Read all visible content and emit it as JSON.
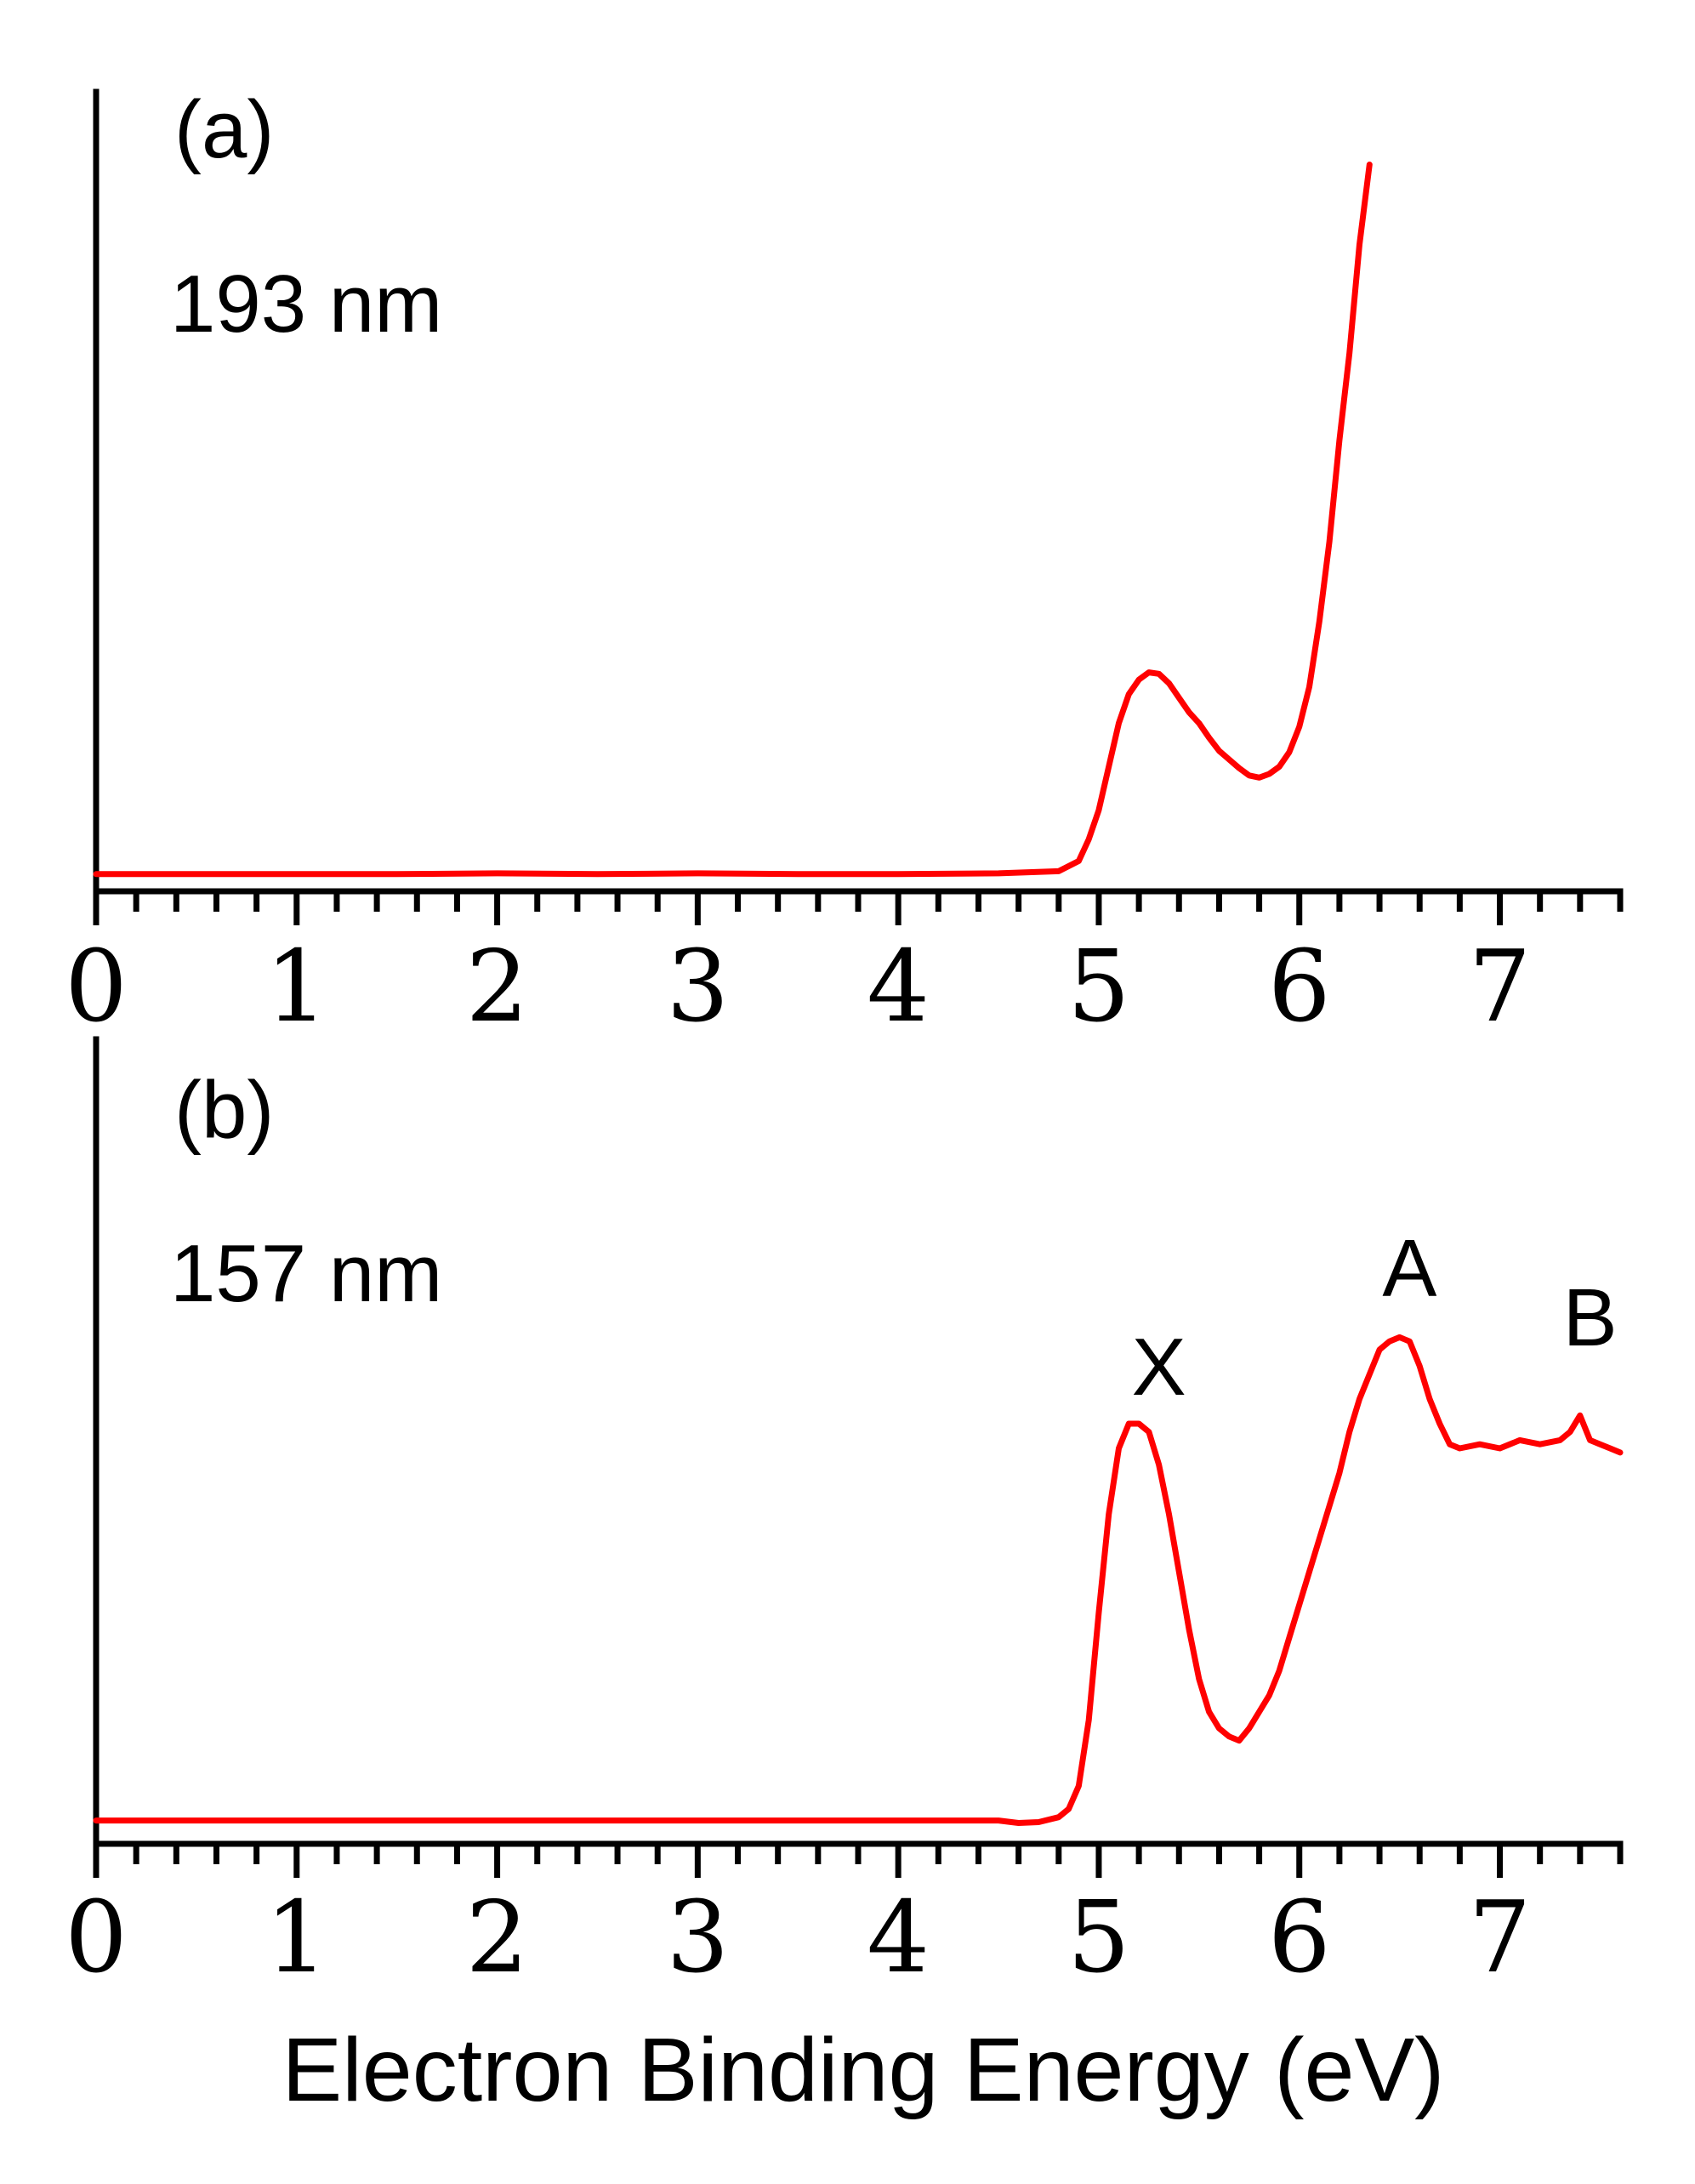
{
  "chart_data": [
    {
      "type": "line",
      "panel_label": "(a)",
      "annotation": "193 nm",
      "xlabel": "",
      "ylabel": "",
      "xlim": [
        0,
        7.6
      ],
      "ylim": [
        0,
        1.0
      ],
      "x_ticks": [
        0,
        1,
        2,
        3,
        4,
        5,
        6,
        7
      ],
      "x_minor_step": 0.2,
      "line_color": "#ff0000",
      "peak_labels": [],
      "series": [
        {
          "x": [
            0,
            0.5,
            1.0,
            1.5,
            2.0,
            2.5,
            3.0,
            3.5,
            4.0,
            4.5,
            4.8,
            4.9,
            4.95,
            5.0,
            5.05,
            5.1,
            5.15,
            5.2,
            5.25,
            5.3,
            5.35,
            5.4,
            5.45,
            5.5,
            5.55,
            5.6,
            5.65,
            5.7,
            5.75,
            5.8,
            5.85,
            5.9,
            5.95,
            6.0,
            6.05,
            6.1,
            6.15,
            6.2,
            6.25,
            6.3,
            6.35
          ],
          "values": [
            0.012,
            0.012,
            0.012,
            0.012,
            0.013,
            0.012,
            0.013,
            0.012,
            0.012,
            0.013,
            0.016,
            0.03,
            0.06,
            0.1,
            0.16,
            0.22,
            0.26,
            0.28,
            0.29,
            0.288,
            0.275,
            0.255,
            0.235,
            0.22,
            0.2,
            0.182,
            0.17,
            0.158,
            0.148,
            0.145,
            0.15,
            0.16,
            0.18,
            0.215,
            0.27,
            0.36,
            0.47,
            0.61,
            0.73,
            0.88,
            0.99
          ]
        }
      ]
    },
    {
      "type": "line",
      "panel_label": "(b)",
      "annotation": "157 nm",
      "xlabel": "Electron Binding Energy (eV)",
      "ylabel": "",
      "xlim": [
        0,
        7.6
      ],
      "ylim": [
        0,
        1.0
      ],
      "x_ticks": [
        0,
        1,
        2,
        3,
        4,
        5,
        6,
        7
      ],
      "x_minor_step": 0.2,
      "line_color": "#ff0000",
      "peak_labels": [
        {
          "text": "X",
          "x": 5.3,
          "y": 0.535
        },
        {
          "text": "A",
          "x": 6.55,
          "y": 0.655
        },
        {
          "text": "B",
          "x": 7.45,
          "y": 0.595
        }
      ],
      "series": [
        {
          "x": [
            0,
            0.5,
            1.0,
            1.5,
            2.0,
            2.5,
            3.0,
            3.5,
            4.0,
            4.5,
            4.6,
            4.7,
            4.8,
            4.85,
            4.9,
            4.95,
            5.0,
            5.05,
            5.1,
            5.15,
            5.2,
            5.25,
            5.3,
            5.35,
            5.4,
            5.45,
            5.5,
            5.55,
            5.6,
            5.65,
            5.7,
            5.75,
            5.8,
            5.85,
            5.9,
            5.95,
            6.0,
            6.05,
            6.1,
            6.15,
            6.2,
            6.25,
            6.3,
            6.35,
            6.4,
            6.45,
            6.5,
            6.55,
            6.6,
            6.65,
            6.7,
            6.75,
            6.8,
            6.9,
            7.0,
            7.1,
            7.2,
            7.3,
            7.35,
            7.4,
            7.45,
            7.5,
            7.55,
            7.6
          ],
          "values": [
            0.018,
            0.018,
            0.018,
            0.018,
            0.018,
            0.018,
            0.018,
            0.018,
            0.018,
            0.018,
            0.015,
            0.016,
            0.022,
            0.032,
            0.06,
            0.14,
            0.27,
            0.39,
            0.47,
            0.5,
            0.5,
            0.49,
            0.45,
            0.39,
            0.32,
            0.25,
            0.19,
            0.15,
            0.13,
            0.12,
            0.115,
            0.13,
            0.15,
            0.17,
            0.2,
            0.24,
            0.28,
            0.32,
            0.36,
            0.4,
            0.44,
            0.49,
            0.53,
            0.56,
            0.59,
            0.6,
            0.605,
            0.6,
            0.57,
            0.53,
            0.5,
            0.475,
            0.47,
            0.475,
            0.47,
            0.48,
            0.475,
            0.48,
            0.49,
            0.51,
            0.48,
            0.475,
            0.47,
            0.465
          ]
        }
      ]
    }
  ]
}
